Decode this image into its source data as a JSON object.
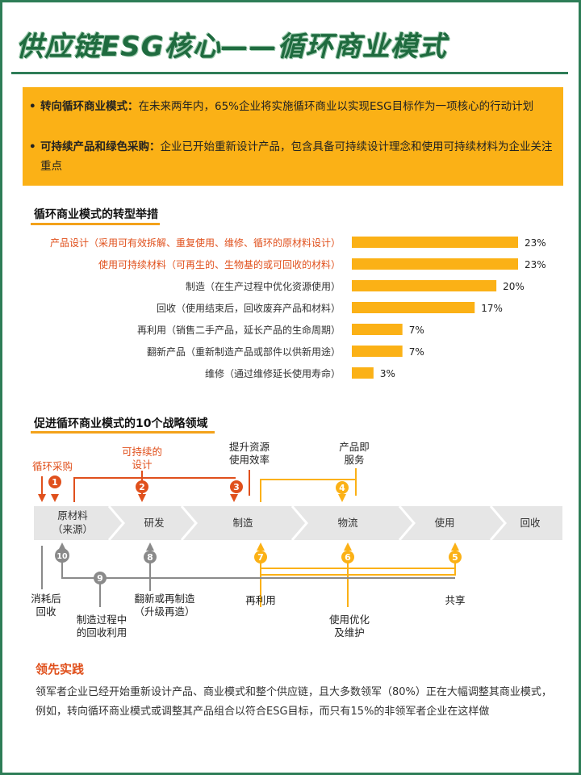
{
  "title": "供应链ESG核心——循环商业模式",
  "summary": [
    {
      "lead": "转向循环商业模式：",
      "text": "在未来两年内，65%企业将实施循环商业以实现ESG目标作为一项核心的行动计划"
    },
    {
      "lead": "可持续产品和绿色采购：",
      "text": "企业已开始重新设计产品，包含具备可持续设计理念和使用可持续材料为企业关注重点"
    }
  ],
  "chart_section_title": "循环商业模式的转型举措",
  "chart_data": {
    "type": "bar",
    "orientation": "horizontal",
    "categories": [
      "产品设计（采用可有效拆解、重复使用、维修、循环的原材料设计）",
      "使用可持续材料（可再生的、生物基的或可回收的材料）",
      "制造（在生产过程中优化资源使用）",
      "回收（使用结束后，回收废弃产品和材料）",
      "再利用（销售二手产品，延长产品的生命周期）",
      "翻新产品（重新制造产品或部件以供新用途）",
      "维修（通过维修延长使用寿命）"
    ],
    "values": [
      23,
      23,
      20,
      17,
      7,
      7,
      3
    ],
    "value_labels": [
      "23%",
      "23%",
      "20%",
      "17%",
      "7%",
      "7%",
      "3%"
    ],
    "highlighted_categories": [
      0,
      1
    ],
    "xlim": [
      0,
      23
    ],
    "grid": false,
    "legend": "none",
    "colors": {
      "bar": "#fbb116",
      "highlight_text": "#e0501c",
      "text": "#333333"
    }
  },
  "diagram": {
    "title": "促进循环商业模式的10个战略领域",
    "stages": [
      "原材料\n（来源）",
      "研发",
      "制造",
      "物流",
      "使用",
      "回收"
    ],
    "top_labels": {
      "l1": "循环采购",
      "l2": "可持续的\n设计",
      "l3": "提升资源\n使用效率",
      "l4": "产品即\n服务"
    },
    "bottom_labels": {
      "l10": "消耗后\n回收",
      "l9": "制造过程中\n的回收利用",
      "l8": "翻新或再制造\n（升级再造）",
      "l7": "再利用",
      "l6": "使用优化\n及维护",
      "l5": "共享"
    },
    "markers": [
      "1",
      "2",
      "3",
      "4",
      "5",
      "6",
      "7",
      "8",
      "9",
      "10"
    ],
    "colors": {
      "orange": "#e0501c",
      "yellow": "#fbb116",
      "gray": "#8a8a8a",
      "stage_fill": "#e6e6e6",
      "number_text": "#ffffff"
    }
  },
  "practice": {
    "title": "领先实践",
    "text": "领军者企业已经开始重新设计产品、商业模式和整个供应链，且大多数领军（80%）正在大幅调整其商业模式，例如，转向循环商业模式或调整其产品组合以符合ESG目标，而只有15%的非领军者企业在这样做"
  }
}
